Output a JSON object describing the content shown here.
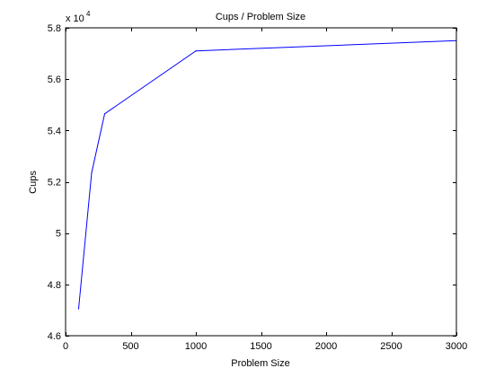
{
  "chart_data": {
    "type": "line",
    "title": "Cups / Problem Size",
    "xlabel": "Problem Size",
    "ylabel": "Cups",
    "xlim": [
      0,
      3000
    ],
    "ylim": [
      46000,
      58000
    ],
    "x_ticks": [
      0,
      500,
      1000,
      1500,
      2000,
      2500,
      3000
    ],
    "y_ticks": [
      46000,
      48000,
      50000,
      52000,
      54000,
      56000,
      58000
    ],
    "x_tick_labels": [
      "0",
      "500",
      "1000",
      "1500",
      "2000",
      "2500",
      "3000"
    ],
    "y_tick_labels": [
      "4.6",
      "4.8",
      "5",
      "5.2",
      "5.4",
      "5.6",
      "5.8"
    ],
    "y_exponent_base": "x 10",
    "y_exponent_power": "4",
    "grid": false,
    "series_color": "#0000ff",
    "series": [
      {
        "x": [
          100,
          200,
          300,
          1000,
          3000
        ],
        "y": [
          47050,
          52350,
          54650,
          57100,
          57500
        ]
      }
    ]
  }
}
